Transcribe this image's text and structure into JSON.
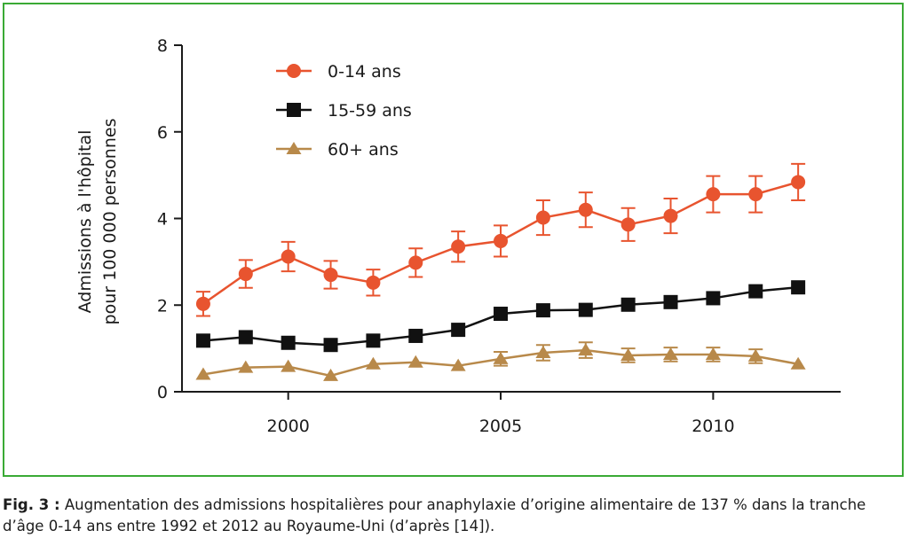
{
  "chart_data": {
    "type": "line",
    "ylabel_line1": "Admissions à l'hôpital",
    "ylabel_line2": "pour 100 000 personnes",
    "xlim": [
      1997.5,
      2013
    ],
    "ylim": [
      0,
      8
    ],
    "x_ticks": [
      2000,
      2005,
      2010
    ],
    "x_tick_labels": [
      "2000",
      "2005",
      "2010"
    ],
    "y_ticks": [
      0,
      2,
      4,
      6,
      8
    ],
    "y_tick_labels": [
      "0",
      "2",
      "4",
      "6",
      "8"
    ],
    "grid": false,
    "legend_position": "top-left",
    "x": [
      1998,
      1999,
      2000,
      2001,
      2002,
      2003,
      2004,
      2005,
      2006,
      2007,
      2008,
      2009,
      2010,
      2011,
      2012
    ],
    "series": [
      {
        "name": "0-14 ans",
        "color": "#e8542f",
        "marker": "circle",
        "values": [
          2.03,
          2.72,
          3.12,
          2.7,
          2.52,
          2.98,
          3.35,
          3.48,
          4.02,
          4.2,
          3.86,
          4.06,
          4.56,
          4.56,
          4.84
        ],
        "error": [
          0.28,
          0.32,
          0.34,
          0.32,
          0.3,
          0.33,
          0.35,
          0.36,
          0.4,
          0.4,
          0.38,
          0.4,
          0.42,
          0.42,
          0.42
        ]
      },
      {
        "name": "15-59 ans",
        "color": "#111111",
        "marker": "square",
        "values": [
          1.18,
          1.26,
          1.13,
          1.08,
          1.18,
          1.29,
          1.43,
          1.8,
          1.88,
          1.89,
          2.01,
          2.07,
          2.16,
          2.32,
          2.41
        ],
        "error": [
          0,
          0,
          0,
          0,
          0,
          0,
          0,
          0,
          0,
          0,
          0,
          0,
          0,
          0,
          0
        ]
      },
      {
        "name": "60+ ans",
        "color": "#b8894a",
        "marker": "triangle",
        "values": [
          0.4,
          0.56,
          0.58,
          0.37,
          0.64,
          0.68,
          0.6,
          0.76,
          0.9,
          0.96,
          0.84,
          0.86,
          0.86,
          0.82,
          0.64
        ],
        "error": [
          0,
          0,
          0,
          0,
          0,
          0,
          0,
          0.16,
          0.18,
          0.18,
          0.16,
          0.16,
          0.16,
          0.16,
          0
        ]
      }
    ]
  },
  "caption": {
    "label": "Fig. 3 :",
    "text": " Augmentation des admissions hospitalières pour anaphylaxie d’origine alimentaire de 137 % dans la tranche d’âge 0-14 ans entre 1992 et 2012 au Royaume-Uni (d’après [14])."
  }
}
